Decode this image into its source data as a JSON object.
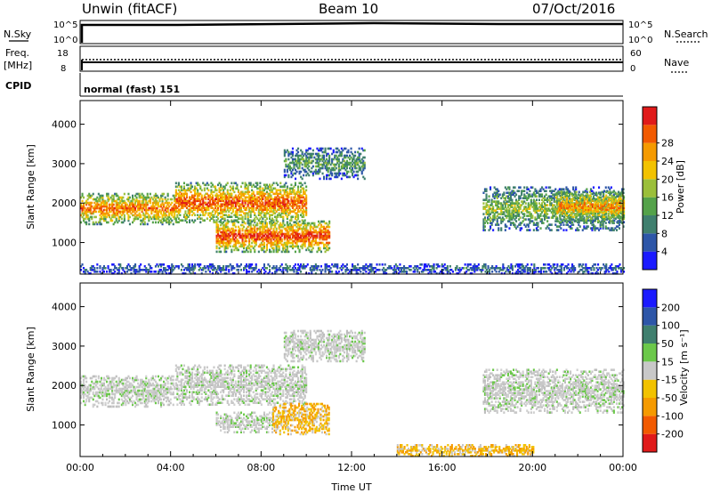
{
  "header": {
    "station": "Unwin (fitACF)",
    "beam": "Beam 10",
    "date": "07/Oct/2016"
  },
  "top_panels": {
    "nsky_label": "N.Sky",
    "nsearch_label": "N.Search",
    "nsky_ticks": [
      "10^5",
      "10^0"
    ],
    "nsearch_ticks": [
      "10^5",
      "10^0"
    ],
    "freq_label_line1": "Freq.",
    "freq_label_line2": "[MHz]",
    "freq_ticks": [
      "18",
      "8"
    ],
    "nave_label": "Nave",
    "nave_ticks": [
      "60",
      "0"
    ],
    "cpid_label": "CPID",
    "cpid_value": "normal (fast) 151"
  },
  "chart_data": [
    {
      "type": "heatmap",
      "parameter": "power",
      "ylabel": "Slant Range [km]",
      "xlabel": "Time UT",
      "x_ticks": [
        "00:00",
        "04:00",
        "08:00",
        "12:00",
        "16:00",
        "20:00",
        "00:00"
      ],
      "y_ticks": [
        "1000",
        "2000",
        "3000",
        "4000"
      ],
      "xlim_hours": [
        0,
        24
      ],
      "ylim_km": [
        200,
        4600
      ],
      "colorbar": {
        "label": "Power [dB]",
        "ticks": [
          "4",
          "8",
          "12",
          "16",
          "20",
          "24",
          "28"
        ],
        "colors": [
          "#1a1aff",
          "#2d56a8",
          "#3f7f6e",
          "#54a24a",
          "#9bbf3a",
          "#f2c200",
          "#f59a00",
          "#f25a00",
          "#e01a1a"
        ]
      },
      "regions": [
        {
          "t0": 0.0,
          "t1": 4.2,
          "r0": 1450,
          "r1": 2250,
          "level": 0.75
        },
        {
          "t0": 4.2,
          "t1": 10.0,
          "r0": 1500,
          "r1": 2500,
          "level": 0.8
        },
        {
          "t0": 6.0,
          "t1": 11.0,
          "r0": 750,
          "r1": 1550,
          "level": 0.85
        },
        {
          "t0": 9.0,
          "t1": 12.6,
          "r0": 2600,
          "r1": 3400,
          "level": 0.35
        },
        {
          "t0": 17.8,
          "t1": 24.0,
          "r0": 1300,
          "r1": 2400,
          "level": 0.45
        },
        {
          "t0": 21.0,
          "t1": 24.0,
          "r0": 1500,
          "r1": 2300,
          "level": 0.7
        },
        {
          "t0": 0.0,
          "t1": 24.0,
          "r0": 200,
          "r1": 450,
          "level": 0.2
        }
      ]
    },
    {
      "type": "heatmap",
      "parameter": "velocity",
      "ylabel": "Slant Range [km]",
      "xlabel": "Time UT",
      "x_ticks": [
        "00:00",
        "04:00",
        "08:00",
        "12:00",
        "16:00",
        "20:00",
        "00:00"
      ],
      "y_ticks": [
        "1000",
        "2000",
        "3000",
        "4000"
      ],
      "xlim_hours": [
        0,
        24
      ],
      "ylim_km": [
        200,
        4600
      ],
      "colorbar": {
        "label": "Velocity [m s⁻¹]",
        "ticks": [
          "200",
          "100",
          "50",
          "15",
          "-15",
          "-50",
          "-100",
          "-200"
        ],
        "colors": [
          "#1a1aff",
          "#2d56a8",
          "#3f7f6e",
          "#6bc84a",
          "#c8c8c8",
          "#f2c200",
          "#f59a00",
          "#f25a00",
          "#e01a1a"
        ]
      },
      "regions": [
        {
          "t0": 0.0,
          "t1": 4.2,
          "r0": 1450,
          "r1": 2250,
          "class": "grey"
        },
        {
          "t0": 4.2,
          "t1": 10.0,
          "r0": 1500,
          "r1": 2500,
          "class": "grey"
        },
        {
          "t0": 6.0,
          "t1": 8.5,
          "r0": 800,
          "r1": 1300,
          "class": "grey"
        },
        {
          "t0": 8.5,
          "t1": 11.0,
          "r0": 750,
          "r1": 1550,
          "class": "orange"
        },
        {
          "t0": 9.0,
          "t1": 12.6,
          "r0": 2600,
          "r1": 3400,
          "class": "grey"
        },
        {
          "t0": 17.8,
          "t1": 24.0,
          "r0": 1300,
          "r1": 2400,
          "class": "grey"
        },
        {
          "t0": 14.0,
          "t1": 20.0,
          "r0": 200,
          "r1": 500,
          "class": "orange"
        }
      ]
    }
  ]
}
